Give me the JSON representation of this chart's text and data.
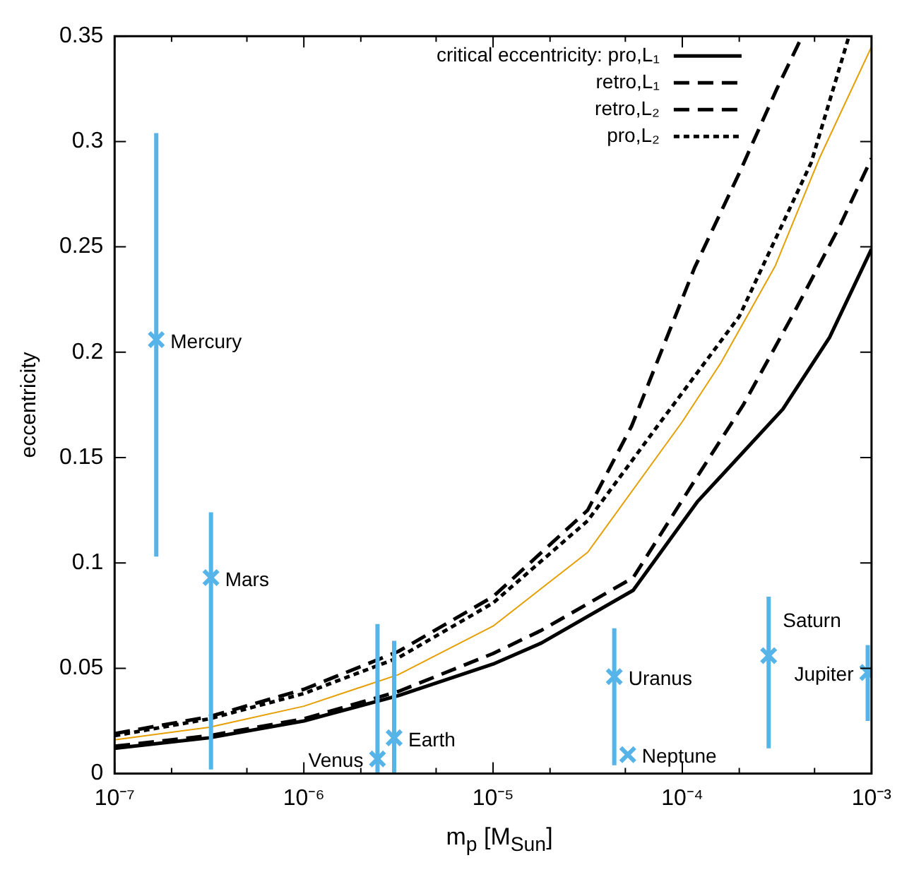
{
  "chart_data": {
    "type": "line",
    "xlabel": "m$_{p}$ [M$_{Sun}$]",
    "ylabel": "eccentricity",
    "log": "x",
    "grid": false,
    "legend": "top right",
    "xlim": [
      1e-07,
      0.001
    ],
    "ylim": [
      0,
      0.35
    ],
    "xticks": [
      {
        "value": 1e-07,
        "label": "10⁻⁷"
      },
      {
        "value": 2e-07,
        "label": null
      },
      {
        "value": 5e-07,
        "label": null
      },
      {
        "value": 1e-06,
        "label": "10⁻⁶"
      },
      {
        "value": 2e-06,
        "label": null
      },
      {
        "value": 5e-06,
        "label": null
      },
      {
        "value": 1e-05,
        "label": "10⁻⁵"
      },
      {
        "value": 2e-05,
        "label": null
      },
      {
        "value": 5e-05,
        "label": null
      },
      {
        "value": 0.0001,
        "label": "10⁻⁴"
      },
      {
        "value": 0.0002,
        "label": null
      },
      {
        "value": 0.0005,
        "label": null
      },
      {
        "value": 0.001,
        "label": "10⁻³"
      }
    ],
    "yticks": [
      0,
      0.05,
      0.1,
      0.15,
      0.2,
      0.25,
      0.3,
      0.35
    ],
    "series": [
      {
        "name": "critical eccentricity: pro,L₁",
        "line_style": "solid",
        "color": "#000000",
        "x": [
          1e-07,
          3.16e-07,
          1e-06,
          3.16e-06,
          1e-05,
          1.8e-05,
          5.5e-05,
          0.00012,
          0.00034,
          0.0006,
          0.001
        ],
        "values": [
          0.012,
          0.017,
          0.025,
          0.037,
          0.052,
          0.062,
          0.087,
          0.129,
          0.173,
          0.207,
          0.249
        ]
      },
      {
        "name": "retro,L₁",
        "line_style": "dashed",
        "color": "#000000",
        "x": [
          1e-07,
          3.16e-07,
          1e-06,
          3.16e-06,
          1e-05,
          3.16e-05,
          5.4e-05,
          0.000116,
          0.0002,
          0.000316,
          0.00043
        ],
        "values": [
          0.019,
          0.027,
          0.04,
          0.058,
          0.084,
          0.125,
          0.165,
          0.24,
          0.285,
          0.325,
          0.35
        ]
      },
      {
        "name": "retro,L₂",
        "line_style": "dashed",
        "color": "#000000",
        "x": [
          1e-07,
          3.16e-07,
          1e-06,
          3.16e-06,
          1e-05,
          1.8e-05,
          5.5e-05,
          0.00012,
          0.00021,
          0.00038,
          0.00068,
          0.001
        ],
        "values": [
          0.013,
          0.018,
          0.026,
          0.039,
          0.057,
          0.068,
          0.093,
          0.141,
          0.175,
          0.217,
          0.26,
          0.292
        ]
      },
      {
        "name": "pro,L₂",
        "line_style": "dotted",
        "color": "#000000",
        "x": [
          1e-07,
          3.16e-07,
          1e-06,
          3.16e-06,
          1e-05,
          3.16e-05,
          7.4e-05,
          0.0002,
          0.00048,
          0.00076
        ],
        "values": [
          0.018,
          0.026,
          0.038,
          0.055,
          0.081,
          0.12,
          0.165,
          0.217,
          0.29,
          0.35
        ]
      },
      {
        "line_style": "solid",
        "color": "#e69f00",
        "x": [
          1e-07,
          3.16e-07,
          1e-06,
          3.16e-06,
          1e-05,
          3.16e-05,
          0.0001,
          0.00016,
          0.00031,
          0.00053,
          0.001
        ],
        "values": [
          0.016,
          0.022,
          0.032,
          0.047,
          0.07,
          0.105,
          0.167,
          0.195,
          0.241,
          0.292,
          0.345
        ]
      },
      {
        "type": "scatter",
        "marker": "cross",
        "color": "#56b4e9",
        "x": [
          1.66e-07,
          3.23e-07,
          2.45e-06,
          3e-06,
          4.37e-05,
          5.15e-05,
          0.000286,
          0.000955
        ],
        "values": [
          0.206,
          0.093,
          0.007,
          0.017,
          0.046,
          0.009,
          0.056,
          0.048
        ],
        "errors": [
          [
            0.103,
            0.304
          ],
          [
            0.002,
            0.124
          ],
          [
            0,
            0.071
          ],
          [
            0,
            0.063
          ],
          [
            0.004,
            0.069
          ],
          null,
          [
            0.012,
            0.084
          ],
          [
            0.025,
            0.061
          ]
        ]
      }
    ],
    "annotations": [
      {
        "text": "Mercury",
        "x": 1.66e-07,
        "y": 0.206
      },
      {
        "text": "Mars",
        "x": 3.23e-07,
        "y": 0.093
      },
      {
        "text": "Venus",
        "x": 2.45e-06,
        "y": 0.007
      },
      {
        "text": "Earth",
        "x": 3e-06,
        "y": 0.017
      },
      {
        "text": "Uranus",
        "x": 4.37e-05,
        "y": 0.046
      },
      {
        "text": "Neptune",
        "x": 5.15e-05,
        "y": 0.009
      },
      {
        "text": "Saturn",
        "x": 0.000286,
        "y": 0.056
      },
      {
        "text": "Jupiter",
        "x": 0.000955,
        "y": 0.048
      }
    ]
  }
}
